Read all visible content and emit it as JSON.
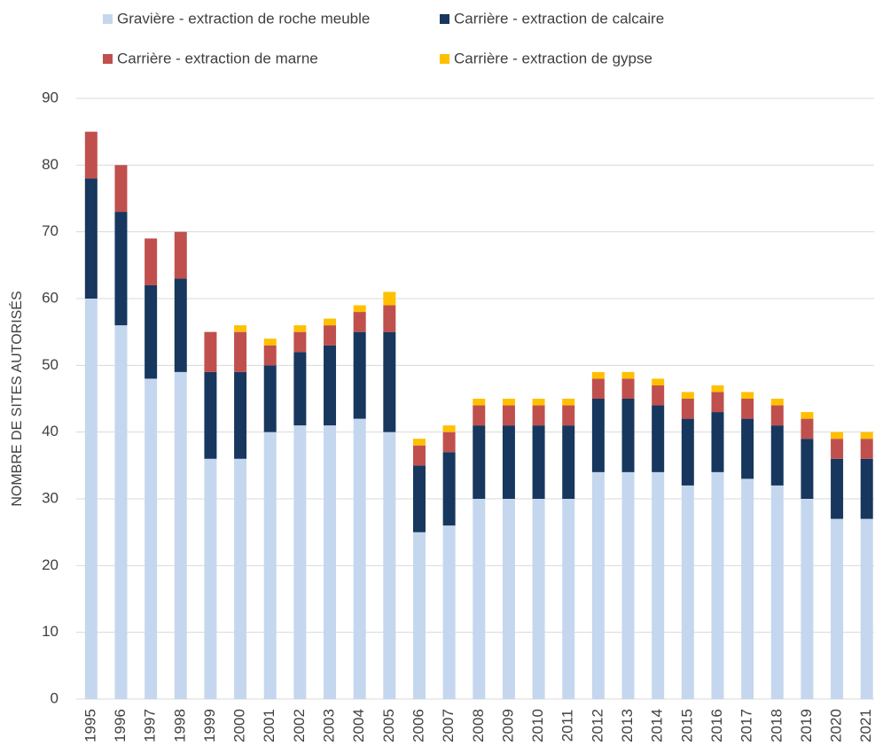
{
  "chart_data": {
    "type": "bar",
    "stacked": true,
    "y_label": "NOMBRE DE SITES AUTORISÉS",
    "categories": [
      "1995",
      "1996",
      "1997",
      "1998",
      "1999",
      "2000",
      "2001",
      "2002",
      "2003",
      "2004",
      "2005",
      "2006",
      "2007",
      "2008",
      "2009",
      "2010",
      "2011",
      "2012",
      "2013",
      "2014",
      "2015",
      "2016",
      "2017",
      "2018",
      "2019",
      "2020",
      "2021"
    ],
    "series": [
      {
        "name": "Gravière - extraction de roche meuble",
        "color": "#c5d7ee",
        "values": [
          60,
          56,
          48,
          49,
          36,
          36,
          40,
          41,
          41,
          42,
          40,
          25,
          26,
          30,
          30,
          30,
          30,
          34,
          34,
          34,
          32,
          34,
          33,
          32,
          30,
          27,
          27
        ]
      },
      {
        "name": "Carrière - extraction de calcaire",
        "color": "#17375e",
        "values": [
          18,
          17,
          14,
          14,
          13,
          13,
          10,
          11,
          12,
          13,
          15,
          10,
          11,
          11,
          11,
          11,
          11,
          11,
          11,
          10,
          10,
          9,
          9,
          9,
          9,
          9,
          9
        ]
      },
      {
        "name": "Carrière - extraction de marne",
        "color": "#c0504d",
        "values": [
          7,
          7,
          7,
          7,
          6,
          6,
          3,
          3,
          3,
          3,
          4,
          3,
          3,
          3,
          3,
          3,
          3,
          3,
          3,
          3,
          3,
          3,
          3,
          3,
          3,
          3,
          3
        ]
      },
      {
        "name": "Carrière - extraction de gypse",
        "color": "#ffc000",
        "values": [
          0,
          0,
          0,
          0,
          0,
          1,
          1,
          1,
          1,
          1,
          2,
          1,
          1,
          1,
          1,
          1,
          1,
          1,
          1,
          1,
          1,
          1,
          1,
          1,
          1,
          1,
          1
        ]
      }
    ],
    "ylim": [
      0,
      90
    ],
    "yticks": [
      0,
      10,
      20,
      30,
      40,
      50,
      60,
      70,
      80,
      90
    ],
    "grid": true
  }
}
